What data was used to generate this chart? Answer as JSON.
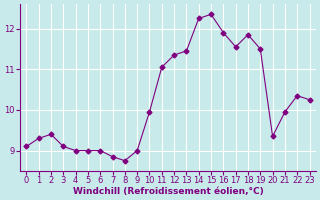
{
  "x": [
    0,
    1,
    2,
    3,
    4,
    5,
    6,
    7,
    8,
    9,
    10,
    11,
    12,
    13,
    14,
    15,
    16,
    17,
    18,
    19,
    20,
    21,
    22,
    23
  ],
  "y": [
    9.1,
    9.3,
    9.4,
    9.1,
    9.0,
    9.0,
    9.0,
    8.85,
    8.75,
    9.0,
    9.95,
    11.05,
    11.35,
    11.45,
    12.25,
    12.35,
    11.9,
    11.55,
    11.85,
    11.5,
    9.35,
    9.95,
    10.35,
    10.25
  ],
  "line_color": "#800080",
  "marker": "D",
  "marker_size": 2.5,
  "background_color": "#c8eaea",
  "grid_color": "#b0d8d8",
  "xlabel": "Windchill (Refroidissement éolien,°C)",
  "xlabel_color": "#800080",
  "tick_color": "#800080",
  "spine_color": "#800080",
  "xlim": [
    -0.5,
    23.5
  ],
  "ylim": [
    8.5,
    12.6
  ],
  "yticks": [
    9,
    10,
    11,
    12
  ],
  "xticks": [
    0,
    1,
    2,
    3,
    4,
    5,
    6,
    7,
    8,
    9,
    10,
    11,
    12,
    13,
    14,
    15,
    16,
    17,
    18,
    19,
    20,
    21,
    22,
    23
  ],
  "tick_fontsize": 6,
  "xlabel_fontsize": 6.5
}
